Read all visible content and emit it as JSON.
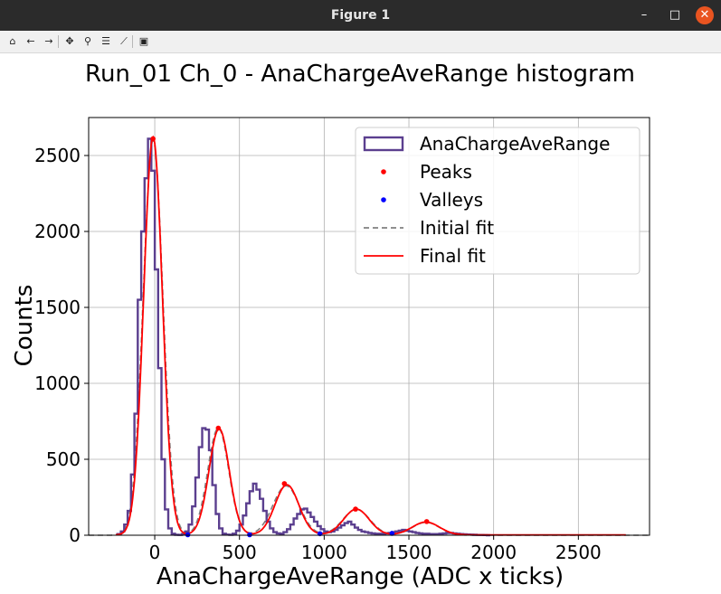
{
  "window": {
    "title": "Figure 1",
    "controls": {
      "minimize": "–",
      "maximize": "□",
      "close": "✕"
    }
  },
  "toolbar": {
    "tools": [
      {
        "name": "home-icon",
        "glyph": "⌂"
      },
      {
        "name": "back-icon",
        "glyph": "←"
      },
      {
        "name": "forward-icon",
        "glyph": "→"
      },
      {
        "name": "pan-icon",
        "glyph": "✥"
      },
      {
        "name": "zoom-icon",
        "glyph": "⚲"
      },
      {
        "name": "configure-subplots-icon",
        "glyph": "☰"
      },
      {
        "name": "edit-axis-icon",
        "glyph": "⟋"
      },
      {
        "name": "save-icon",
        "glyph": "▣"
      }
    ]
  },
  "chart_data": {
    "type": "histogram",
    "title": "Run_01 Ch_0 - AnaChargeAveRange histogram",
    "xlabel": "AnaChargeAveRange (ADC x ticks)",
    "ylabel": "Counts",
    "xlim": [
      -390,
      2920
    ],
    "ylim": [
      0,
      2750
    ],
    "xticks": [
      0,
      500,
      1000,
      1500,
      2000,
      2500
    ],
    "yticks": [
      0,
      500,
      1000,
      1500,
      2000,
      2500
    ],
    "grid": true,
    "legend": {
      "position": "top-right",
      "entries": [
        "AnaChargeAveRange",
        "Peaks",
        "Valleys",
        "Initial fit",
        "Final fit"
      ]
    },
    "colors": {
      "histogram": "#5b3f8f",
      "peaks": "#ff0000",
      "valleys": "#0000ff",
      "initial_fit": "#808080",
      "final_fit": "#ff0000",
      "baseline": "#2f5b8a"
    },
    "histogram": {
      "name": "AnaChargeAveRange",
      "bin_width": 20,
      "first_bin_left": -220,
      "counts": [
        8,
        25,
        70,
        160,
        400,
        800,
        1550,
        2000,
        2350,
        2610,
        2400,
        1750,
        1100,
        500,
        170,
        45,
        10,
        3,
        2,
        8,
        25,
        70,
        190,
        380,
        580,
        705,
        695,
        560,
        330,
        140,
        45,
        10,
        4,
        3,
        10,
        30,
        70,
        130,
        210,
        290,
        340,
        300,
        240,
        160,
        90,
        45,
        20,
        12,
        10,
        20,
        40,
        70,
        110,
        140,
        170,
        175,
        150,
        120,
        90,
        60,
        40,
        25,
        20,
        25,
        35,
        50,
        65,
        80,
        90,
        70,
        50,
        35,
        25,
        20,
        15,
        12,
        10,
        10,
        10,
        12,
        15,
        20,
        25,
        30,
        35,
        30,
        25,
        20,
        15,
        12,
        10,
        10,
        8,
        8,
        8,
        10,
        12,
        15,
        15,
        12,
        10,
        8,
        6,
        5,
        4,
        3,
        2,
        2,
        1,
        0
      ]
    },
    "peaks": {
      "name": "Peaks",
      "x": [
        -10,
        375,
        765,
        1185,
        1605
      ],
      "y": [
        2610,
        705,
        340,
        172,
        90
      ]
    },
    "valleys": {
      "name": "Valleys",
      "x": [
        195,
        560,
        975,
        1400
      ],
      "y": [
        3,
        3,
        10,
        12
      ]
    },
    "initial_fit": {
      "name": "Initial fit",
      "baseline": 0,
      "gaussians": [
        {
          "mu": -10,
          "amp": 2600,
          "sigma": 58
        },
        {
          "mu": 375,
          "amp": 705,
          "sigma": 62
        },
        {
          "mu": 775,
          "amp": 325,
          "sigma": 78
        },
        {
          "mu": 1190,
          "amp": 170,
          "sigma": 80
        },
        {
          "mu": 1600,
          "amp": 85,
          "sigma": 80
        }
      ]
    },
    "final_fit": {
      "name": "Final fit",
      "range": [
        -230,
        2780
      ],
      "baseline": 2,
      "gaussians": [
        {
          "mu": -10,
          "amp": 2620,
          "sigma": 55
        },
        {
          "mu": 380,
          "amp": 700,
          "sigma": 60
        },
        {
          "mu": 780,
          "amp": 330,
          "sigma": 70
        },
        {
          "mu": 1190,
          "amp": 170,
          "sigma": 75
        },
        {
          "mu": 1600,
          "amp": 85,
          "sigma": 80
        }
      ]
    }
  }
}
